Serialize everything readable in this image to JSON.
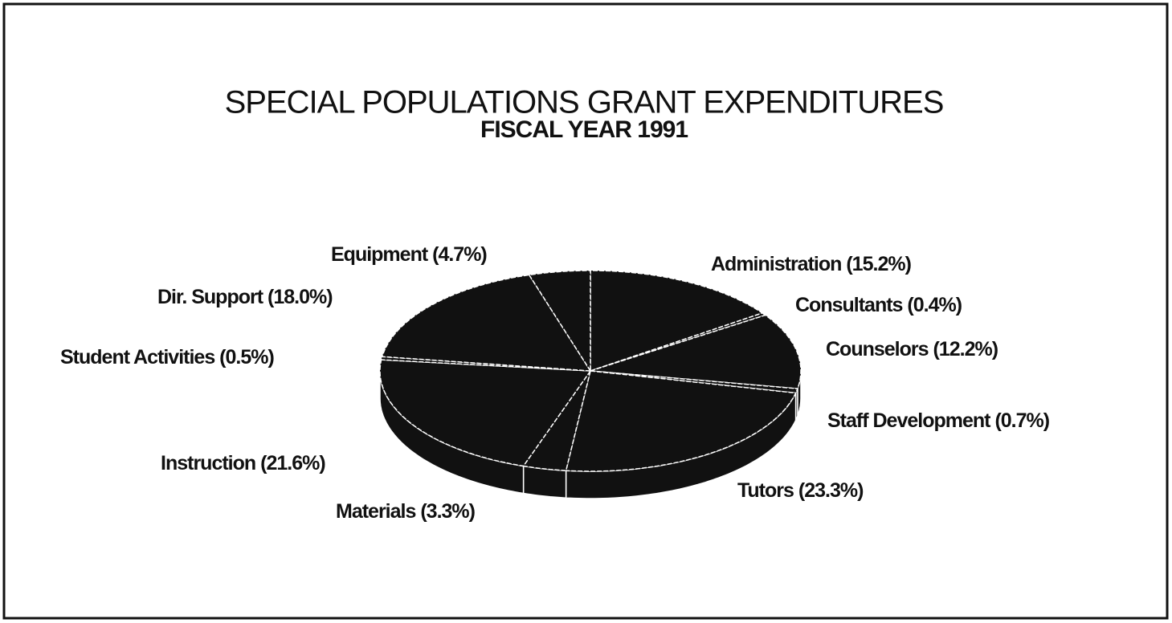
{
  "chart_data": {
    "type": "pie",
    "title": "SPECIAL POPULATIONS GRANT EXPENDITURES",
    "subtitle": "FISCAL YEAR 1991",
    "categories": [
      "Administration",
      "Consultants",
      "Counselors",
      "Staff Development",
      "Tutors",
      "Materials",
      "Instruction",
      "Student Activities",
      "Dir. Support",
      "Equipment"
    ],
    "values": [
      15.2,
      0.4,
      12.2,
      0.7,
      23.3,
      3.3,
      21.6,
      0.5,
      18.0,
      4.7
    ],
    "value_labels": [
      "(15.2%)",
      "(0.4%)",
      "(12.2%)",
      "(0.7%)",
      "(23.3%)",
      "(3.3%)",
      "(21.6%)",
      "(0.5%)",
      "(18.0%)",
      "(4.7%)"
    ],
    "color": "#111111"
  }
}
